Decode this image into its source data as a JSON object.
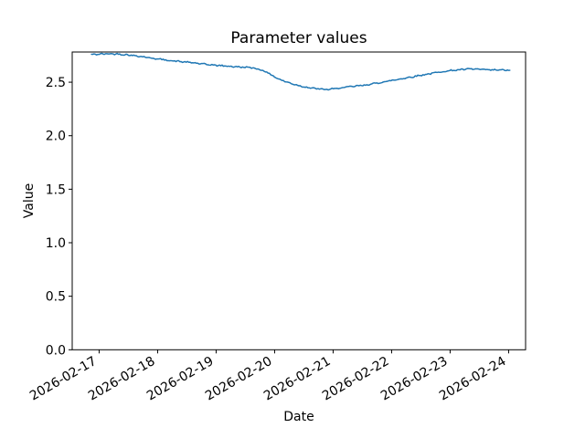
{
  "figure": {
    "background": "#ffffff",
    "spine_color": "#000000",
    "text_color": "#000000"
  },
  "chart_data": {
    "type": "line",
    "title": "Parameter values",
    "xlabel": "Date",
    "ylabel": "Value",
    "grid": false,
    "legend": false,
    "x_tick_labels": [
      "2026-02-17",
      "2026-02-18",
      "2026-02-19",
      "2026-02-20",
      "2026-02-21",
      "2026-02-22",
      "2026-02-23",
      "2026-02-24"
    ],
    "x_tick_positions": [
      0,
      1,
      2,
      3,
      4,
      5,
      6,
      7
    ],
    "x_unit": "days since 2026-02-17",
    "y_tick_labels": [
      "0.0",
      "0.5",
      "1.0",
      "1.5",
      "2.0",
      "2.5"
    ],
    "y_tick_values": [
      0.0,
      0.5,
      1.0,
      1.5,
      2.0,
      2.5
    ],
    "xlim": [
      -0.46,
      7.29
    ],
    "ylim": [
      0,
      2.782
    ],
    "series": [
      {
        "color": "#1f77b4",
        "x": [
          -0.13,
          0.0,
          0.15,
          0.3,
          0.5,
          0.7,
          0.9,
          1.0,
          1.2,
          1.4,
          1.6,
          1.8,
          2.0,
          2.2,
          2.35,
          2.5,
          2.65,
          2.8,
          2.9,
          3.0,
          3.1,
          3.25,
          3.4,
          3.55,
          3.7,
          3.88,
          4.0,
          4.25,
          4.55,
          4.8,
          5.0,
          5.25,
          5.5,
          5.8,
          6.0,
          6.2,
          6.35,
          6.5,
          6.7,
          6.85,
          7.02
        ],
        "y": [
          2.758,
          2.762,
          2.765,
          2.764,
          2.755,
          2.742,
          2.725,
          2.717,
          2.703,
          2.692,
          2.682,
          2.668,
          2.658,
          2.65,
          2.643,
          2.64,
          2.632,
          2.61,
          2.583,
          2.55,
          2.522,
          2.494,
          2.47,
          2.452,
          2.44,
          2.431,
          2.437,
          2.455,
          2.473,
          2.496,
          2.516,
          2.54,
          2.565,
          2.593,
          2.608,
          2.618,
          2.624,
          2.62,
          2.614,
          2.614,
          2.611
        ]
      }
    ]
  }
}
